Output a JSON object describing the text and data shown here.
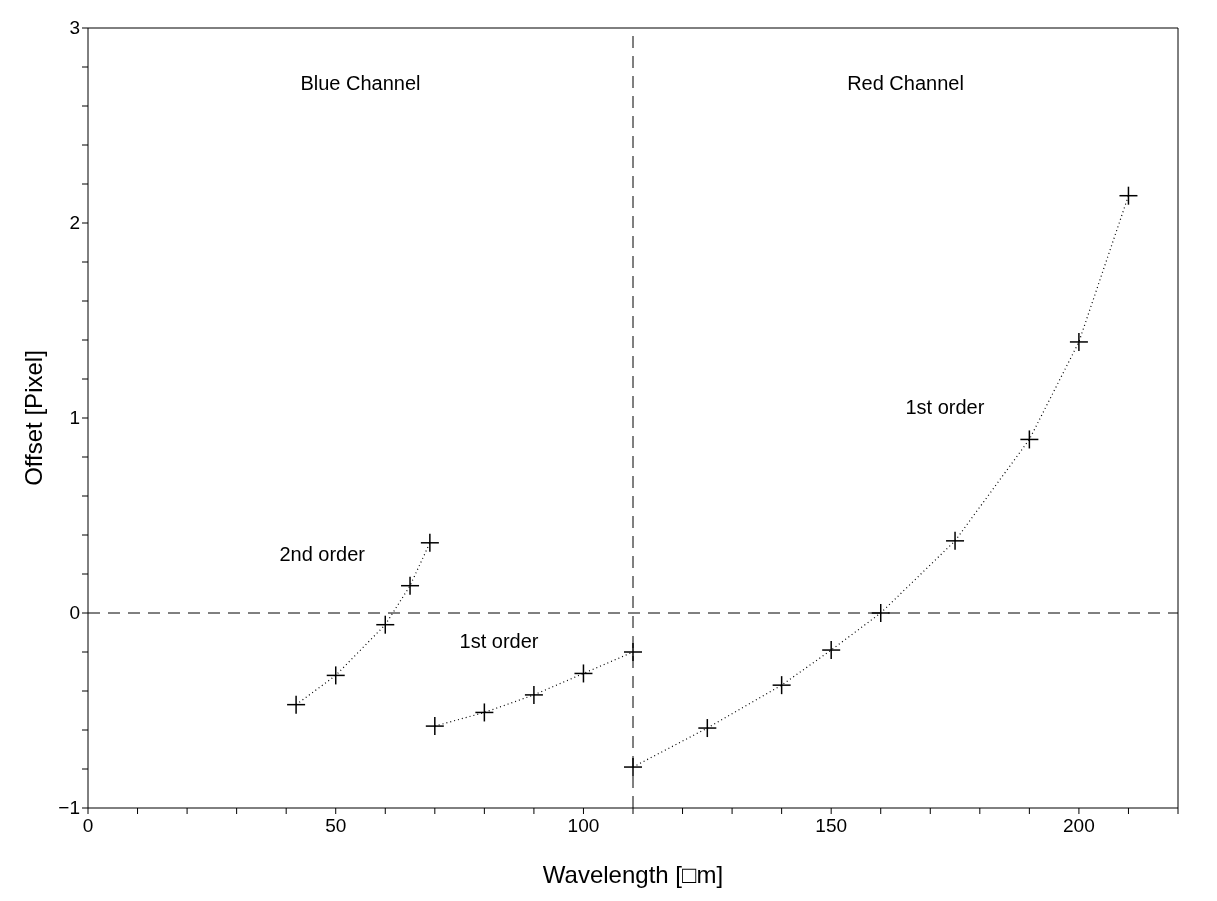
{
  "chart_data": {
    "type": "line",
    "xlabel": "Wavelength [□m]",
    "ylabel": "Offset [Pixel]",
    "xlim": [
      0,
      220
    ],
    "ylim": [
      -1,
      3
    ],
    "xticks": [
      0,
      {
        "value": 10,
        "label": null
      },
      {
        "value": 20,
        "label": null
      },
      {
        "value": 30,
        "label": null
      },
      {
        "value": 40,
        "label": null
      },
      50,
      {
        "value": 60,
        "label": null
      },
      {
        "value": 70,
        "label": null
      },
      {
        "value": 80,
        "label": null
      },
      {
        "value": 90,
        "label": null
      },
      100,
      {
        "value": 110,
        "label": null
      },
      {
        "value": 120,
        "label": null
      },
      {
        "value": 130,
        "label": null
      },
      {
        "value": 140,
        "label": null
      },
      150,
      {
        "value": 160,
        "label": null
      },
      {
        "value": 170,
        "label": null
      },
      {
        "value": 180,
        "label": null
      },
      {
        "value": 190,
        "label": null
      },
      200,
      {
        "value": 210,
        "label": null
      },
      {
        "value": 220,
        "label": null
      }
    ],
    "yticks": [
      {
        "value": -1,
        "label": "−1"
      },
      {
        "value": -0.8,
        "label": null
      },
      {
        "value": -0.6,
        "label": null
      },
      {
        "value": -0.4,
        "label": null
      },
      {
        "value": -0.2,
        "label": null
      },
      0,
      {
        "value": 0.2,
        "label": null
      },
      {
        "value": 0.4,
        "label": null
      },
      {
        "value": 0.6,
        "label": null
      },
      {
        "value": 0.8,
        "label": null
      },
      1,
      {
        "value": 1.2,
        "label": null
      },
      {
        "value": 1.4,
        "label": null
      },
      {
        "value": 1.6,
        "label": null
      },
      {
        "value": 1.8,
        "label": null
      },
      2,
      {
        "value": 2.2,
        "label": null
      },
      {
        "value": 2.4,
        "label": null
      },
      {
        "value": 2.6,
        "label": null
      },
      {
        "value": 2.8,
        "label": null
      },
      3
    ],
    "marker": "cross",
    "line_style": "dotted",
    "series": [
      {
        "name": "2nd order",
        "color": "#000000",
        "x": [
          42,
          50,
          60,
          65,
          69
        ],
        "values": [
          -0.47,
          -0.32,
          -0.06,
          0.14,
          0.36
        ]
      },
      {
        "name": "1st order",
        "color": "#000000",
        "x": [
          70,
          80,
          90,
          100,
          110
        ],
        "values": [
          -0.58,
          -0.51,
          -0.42,
          -0.31,
          -0.2
        ]
      },
      {
        "name": "1st order",
        "color": "#000000",
        "x": [
          110,
          125,
          140,
          150,
          160,
          175,
          190,
          200,
          210
        ],
        "values": [
          -0.79,
          -0.59,
          -0.37,
          -0.19,
          0,
          0.37,
          0.89,
          1.39,
          2.14
        ]
      }
    ],
    "ref_lines": [
      {
        "axis": "x",
        "value": 110,
        "color": "#000000",
        "line_style": "dashed"
      },
      {
        "axis": "y",
        "value": 0,
        "color": "#000000",
        "line_style": "dashed"
      }
    ],
    "annotations": [
      "Blue Channel",
      "Red Channel"
    ]
  }
}
